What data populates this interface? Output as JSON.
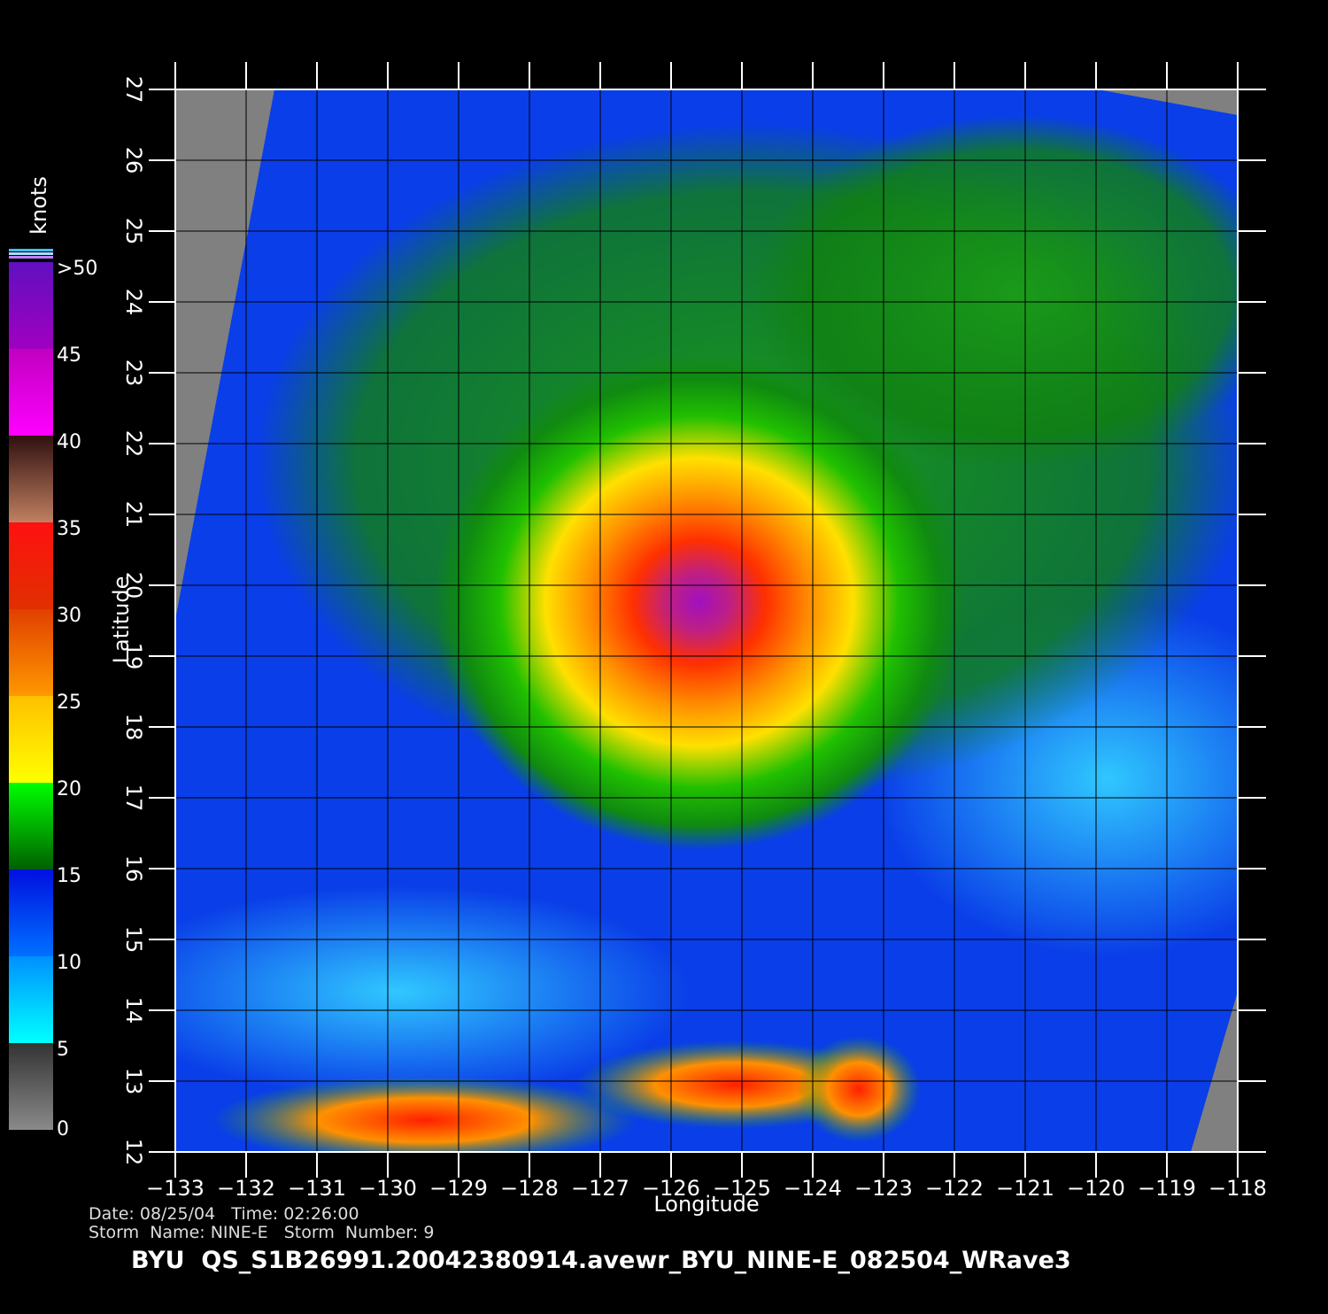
{
  "map": {
    "xlabel": "Longitude",
    "ylabel": "Latitude",
    "xlim": [
      -133,
      -118
    ],
    "ylim": [
      12,
      27
    ],
    "xticks": [
      {
        "value": -133,
        "label": "−133"
      },
      {
        "value": -132,
        "label": "−132"
      },
      {
        "value": -131,
        "label": "−131"
      },
      {
        "value": -130,
        "label": "−130"
      },
      {
        "value": -129,
        "label": "−129"
      },
      {
        "value": -128,
        "label": "−128"
      },
      {
        "value": -127,
        "label": "−127"
      },
      {
        "value": -126,
        "label": "−126"
      },
      {
        "value": -125,
        "label": "−125"
      },
      {
        "value": -124,
        "label": "−124"
      },
      {
        "value": -123,
        "label": "−123"
      },
      {
        "value": -122,
        "label": "−122"
      },
      {
        "value": -121,
        "label": "−121"
      },
      {
        "value": -120,
        "label": "−120"
      },
      {
        "value": -119,
        "label": "−119"
      },
      {
        "value": -118,
        "label": "−118"
      }
    ],
    "yticks": [
      12,
      13,
      14,
      15,
      16,
      17,
      18,
      19,
      20,
      21,
      22,
      23,
      24,
      25,
      26,
      27
    ]
  },
  "colorbar": {
    "title": "knots",
    "lim": [
      0,
      50
    ],
    "ticks": [
      0,
      5,
      10,
      15,
      20,
      25,
      30,
      35,
      40,
      45,
      {
        "value": 50,
        "label": ">50"
      }
    ],
    "colors": [
      [
        "#8a8a8a",
        "#333333"
      ],
      [
        "#00ffff",
        "#0090ff"
      ],
      [
        "#0070ff",
        "#0010e0"
      ],
      [
        "#006000",
        "#00ff00"
      ],
      [
        "#ffff00",
        "#ffc000"
      ],
      [
        "#ff9800",
        "#e04000"
      ],
      [
        "#e03000",
        "#ff1010"
      ],
      [
        "#c08060",
        "#301010"
      ],
      [
        "#ff00ff",
        "#c000c0"
      ],
      [
        "#a000c0",
        "#6010c0"
      ]
    ]
  },
  "footer": {
    "line1": "Date: 08/25/04   Time: 02:26:00",
    "line2": "Storm  Name: NINE-E   Storm  Number: 9",
    "file": "BYU  QS_S1B26991.20042380914.avewr_BYU_NINE-E_082504_WRave3"
  }
}
